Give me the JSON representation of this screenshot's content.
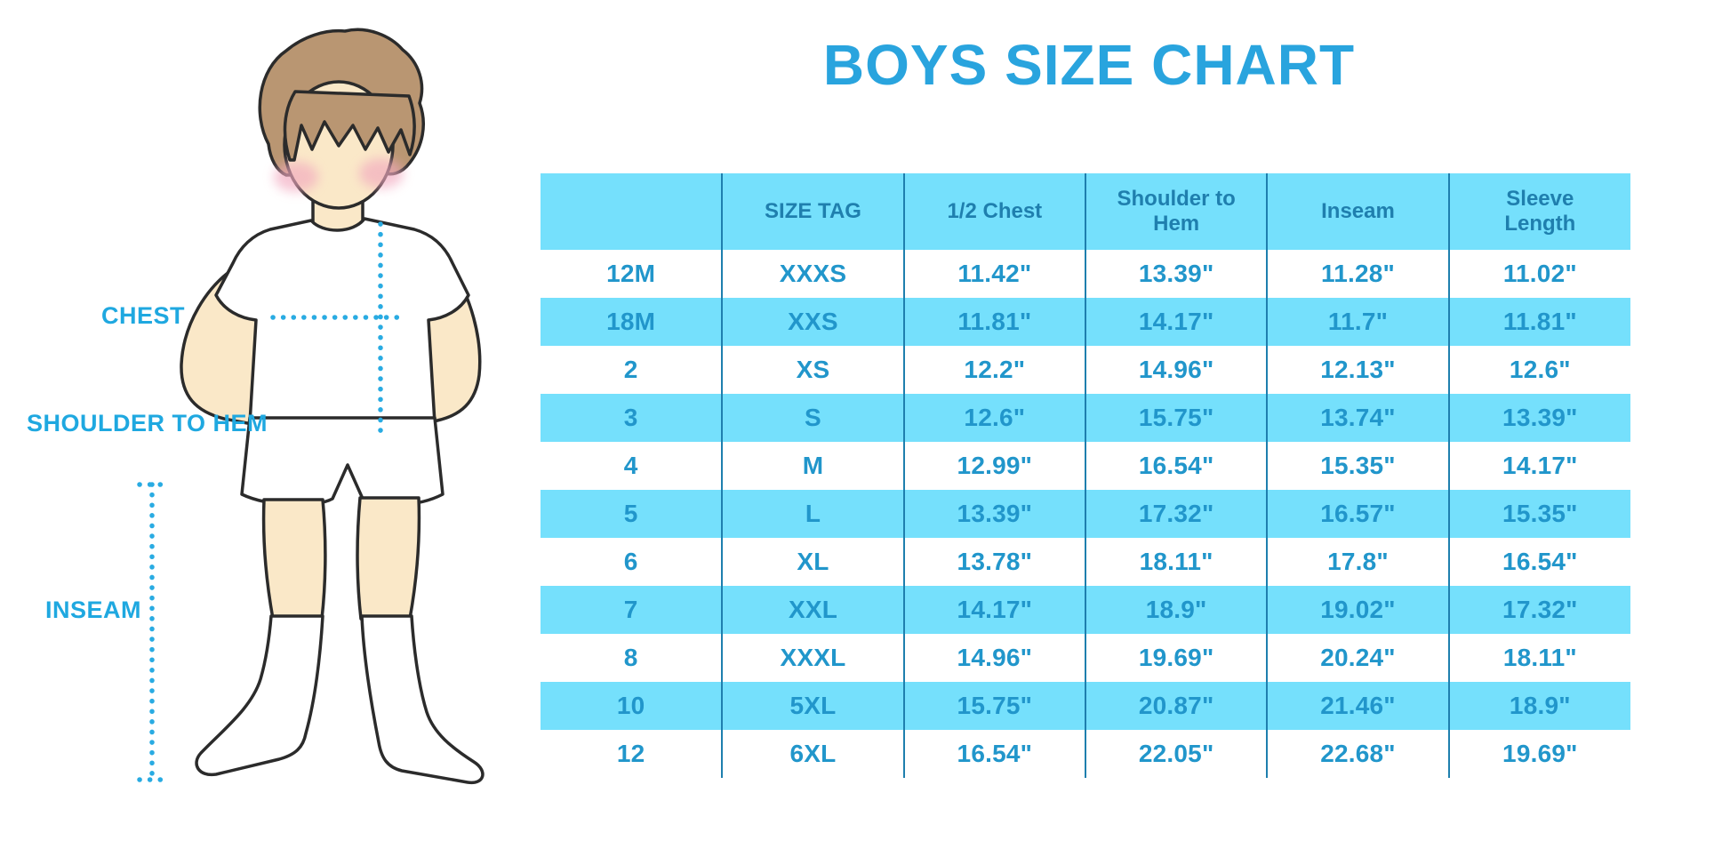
{
  "title": "BOYS SIZE CHART",
  "illustration": {
    "chest_label": "CHEST",
    "shoulder_to_hem_label": "SHOULDER TO HEM",
    "inseam_label": "INSEAM"
  },
  "chart_data": {
    "type": "table",
    "title": "BOYS SIZE CHART",
    "columns": [
      "",
      "SIZE TAG",
      "1/2 Chest",
      "Shoulder to Hem",
      "Inseam",
      "Sleeve Length"
    ],
    "rows": [
      [
        "12M",
        "XXXS",
        "11.42\"",
        "13.39\"",
        "11.28\"",
        "11.02\""
      ],
      [
        "18M",
        "XXS",
        "11.81\"",
        "14.17\"",
        "11.7\"",
        "11.81\""
      ],
      [
        "2",
        "XS",
        "12.2\"",
        "14.96\"",
        "12.13\"",
        "12.6\""
      ],
      [
        "3",
        "S",
        "12.6\"",
        "15.75\"",
        "13.74\"",
        "13.39\""
      ],
      [
        "4",
        "M",
        "12.99\"",
        "16.54\"",
        "15.35\"",
        "14.17\""
      ],
      [
        "5",
        "L",
        "13.39\"",
        "17.32\"",
        "16.57\"",
        "15.35\""
      ],
      [
        "6",
        "XL",
        "13.78\"",
        "18.11\"",
        "17.8\"",
        "16.54\""
      ],
      [
        "7",
        "XXL",
        "14.17\"",
        "18.9\"",
        "19.02\"",
        "17.32\""
      ],
      [
        "8",
        "XXXL",
        "14.96\"",
        "19.69\"",
        "20.24\"",
        "18.11\""
      ],
      [
        "10",
        "5XL",
        "15.75\"",
        "20.87\"",
        "21.46\"",
        "18.9\""
      ],
      [
        "12",
        "6XL",
        "16.54\"",
        "22.05\"",
        "22.68\"",
        "19.69\""
      ]
    ]
  },
  "colors": {
    "title_blue": "#29a4de",
    "label_blue": "#1fa8e0",
    "cell_text_blue": "#2196cb",
    "header_text_blue": "#1f7fae",
    "band_cyan": "#75e0fc",
    "divider_blue": "#1e7fae",
    "dotted_line_blue": "#29abe2",
    "hair_brown": "#b99672",
    "skin_tone": "#fae8c8",
    "cheek_pink": "#f2a9bf",
    "outline_dark": "#2b2b2b"
  }
}
